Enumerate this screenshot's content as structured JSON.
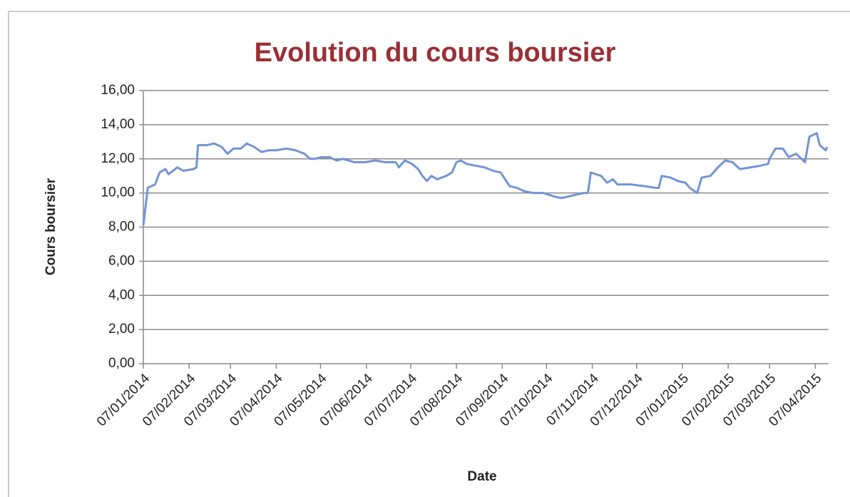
{
  "chart_data": {
    "type": "line",
    "title": "Evolution du cours boursier",
    "xlabel": "Date",
    "ylabel": "Cours boursier",
    "grid": true,
    "x": [
      "2014-01-07",
      "2014-01-10",
      "2014-01-15",
      "2014-01-18",
      "2014-01-22",
      "2014-01-24",
      "2014-01-30",
      "2014-02-03",
      "2014-02-10",
      "2014-02-12",
      "2014-02-13",
      "2014-02-19",
      "2014-02-24",
      "2014-03-01",
      "2014-03-05",
      "2014-03-09",
      "2014-03-14",
      "2014-03-18",
      "2014-03-23",
      "2014-03-28",
      "2014-04-02",
      "2014-04-07",
      "2014-04-14",
      "2014-04-20",
      "2014-04-26",
      "2014-04-30",
      "2014-05-03",
      "2014-05-08",
      "2014-05-13",
      "2014-05-18",
      "2014-05-22",
      "2014-05-30",
      "2014-06-06",
      "2014-06-13",
      "2014-06-20",
      "2014-06-27",
      "2014-06-29",
      "2014-07-03",
      "2014-07-08",
      "2014-07-12",
      "2014-07-15",
      "2014-07-18",
      "2014-07-21",
      "2014-07-25",
      "2014-07-31",
      "2014-08-04",
      "2014-08-07",
      "2014-08-10",
      "2014-08-14",
      "2014-08-20",
      "2014-08-26",
      "2014-09-01",
      "2014-09-06",
      "2014-09-09",
      "2014-09-12",
      "2014-09-17",
      "2014-09-22",
      "2014-09-28",
      "2014-10-05",
      "2014-10-12",
      "2014-10-17",
      "2014-10-22",
      "2014-10-27",
      "2014-11-01",
      "2014-11-04",
      "2014-11-06",
      "2014-11-13",
      "2014-11-17",
      "2014-11-21",
      "2014-11-24",
      "2014-12-03",
      "2014-12-12",
      "2014-12-20",
      "2014-12-22",
      "2014-12-24",
      "2014-12-30",
      "2015-01-04",
      "2015-01-09",
      "2015-01-12",
      "2015-01-17",
      "2015-01-20",
      "2015-01-26",
      "2015-01-31",
      "2015-02-05",
      "2015-02-10",
      "2015-02-15",
      "2015-02-22",
      "2015-03-01",
      "2015-03-06",
      "2015-03-07",
      "2015-03-11",
      "2015-03-16",
      "2015-03-20",
      "2015-03-25",
      "2015-03-31",
      "2015-04-03",
      "2015-04-08",
      "2015-04-10",
      "2015-04-14",
      "2015-04-15"
    ],
    "series": [
      {
        "name": "Cours boursier",
        "color": "#7294d4",
        "values": [
          8.1,
          10.3,
          10.5,
          11.2,
          11.4,
          11.1,
          11.5,
          11.3,
          11.4,
          11.5,
          12.8,
          12.8,
          12.9,
          12.7,
          12.3,
          12.6,
          12.6,
          12.9,
          12.7,
          12.4,
          12.5,
          12.5,
          12.6,
          12.5,
          12.3,
          12.0,
          12.0,
          12.1,
          12.1,
          11.9,
          12.0,
          11.8,
          11.8,
          11.9,
          11.8,
          11.8,
          11.5,
          11.9,
          11.7,
          11.4,
          11.0,
          10.7,
          11.0,
          10.8,
          11.0,
          11.2,
          11.8,
          11.9,
          11.7,
          11.6,
          11.5,
          11.3,
          11.2,
          10.8,
          10.4,
          10.3,
          10.1,
          10.0,
          10.0,
          9.8,
          9.7,
          9.8,
          9.9,
          10.0,
          10.0,
          11.2,
          11.0,
          10.6,
          10.8,
          10.5,
          10.5,
          10.4,
          10.3,
          10.3,
          11.0,
          10.9,
          10.7,
          10.6,
          10.3,
          10.0,
          10.9,
          11.0,
          11.5,
          11.9,
          11.8,
          11.4,
          11.5,
          11.6,
          11.7,
          12.0,
          12.6,
          12.6,
          12.1,
          12.3,
          11.8,
          13.3,
          13.5,
          12.8,
          12.5,
          12.7
        ]
      }
    ],
    "xlim": [
      "2014-01-07",
      "2015-04-16"
    ],
    "xticks": [
      {
        "value": "2014-01-07",
        "label": "07/01/2014"
      },
      {
        "value": "2014-02-07",
        "label": "07/02/2014"
      },
      {
        "value": "2014-03-07",
        "label": "07/03/2014"
      },
      {
        "value": "2014-04-07",
        "label": "07/04/2014"
      },
      {
        "value": "2014-05-07",
        "label": "07/05/2014"
      },
      {
        "value": "2014-06-07",
        "label": "07/06/2014"
      },
      {
        "value": "2014-07-07",
        "label": "07/07/2014"
      },
      {
        "value": "2014-08-07",
        "label": "07/08/2014"
      },
      {
        "value": "2014-09-07",
        "label": "07/09/2014"
      },
      {
        "value": "2014-10-07",
        "label": "07/10/2014"
      },
      {
        "value": "2014-11-07",
        "label": "07/11/2014"
      },
      {
        "value": "2014-12-07",
        "label": "07/12/2014"
      },
      {
        "value": "2015-01-07",
        "label": "07/01/2015"
      },
      {
        "value": "2015-02-07",
        "label": "07/02/2015"
      },
      {
        "value": "2015-03-07",
        "label": "07/03/2015"
      },
      {
        "value": "2015-04-07",
        "label": "07/04/2015"
      }
    ],
    "ylim": [
      0,
      16
    ],
    "yticks": [
      {
        "value": 0,
        "label": "0,00"
      },
      {
        "value": 2,
        "label": "2,00"
      },
      {
        "value": 4,
        "label": "4,00"
      },
      {
        "value": 6,
        "label": "6,00"
      },
      {
        "value": 8,
        "label": "8,00"
      },
      {
        "value": 10,
        "label": "10,00"
      },
      {
        "value": 12,
        "label": "12,00"
      },
      {
        "value": 14,
        "label": "14,00"
      },
      {
        "value": 16,
        "label": "16,00"
      }
    ]
  }
}
